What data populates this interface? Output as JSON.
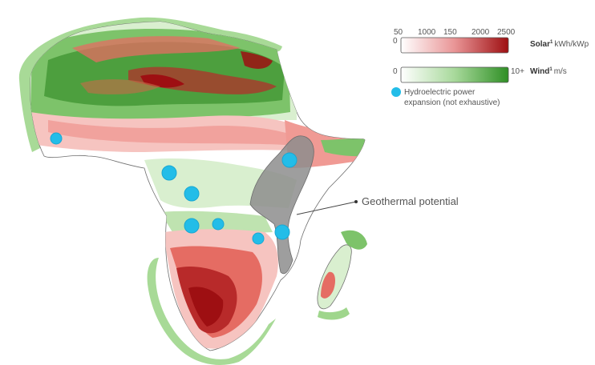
{
  "colors": {
    "solar_dark": "#9e0f12",
    "solar_mid": "#e0575a",
    "solar_light": "#f6c4c0",
    "wind_dark": "#3c8f2e",
    "wind_mid": "#7dc36a",
    "wind_light": "#d9efcf",
    "hydro": "#23bde8",
    "geothermal": "#8d8d8d",
    "outline": "#6f6f6f"
  },
  "legend": {
    "solar": {
      "ticks": [
        "50",
        "1000",
        "150",
        "2000",
        "2500"
      ],
      "zero": "0",
      "label_bold": "Solar",
      "label_sup": "1",
      "label_unit": "kWh/kWp"
    },
    "wind": {
      "zero": "0",
      "max": "10+",
      "label_bold": "Wind",
      "label_sup": "1",
      "label_unit": "m/s"
    },
    "hydro": {
      "line1": "Hydroelectric power",
      "line2": "expansion (not exhaustive)",
      "icon": "filled-circle"
    }
  },
  "callout": {
    "geothermal_label": "Geothermal potential"
  }
}
